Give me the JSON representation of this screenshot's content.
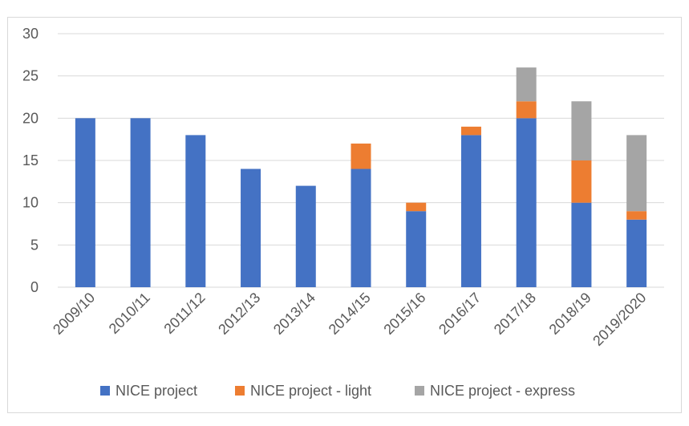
{
  "chart_data": {
    "type": "bar",
    "stacked": true,
    "categories": [
      "2009/10",
      "2010/11",
      "2011/12",
      "2012/13",
      "2013/14",
      "2014/15",
      "2015/16",
      "2016/17",
      "2017/18",
      "2018/19",
      "2019/2020"
    ],
    "series": [
      {
        "name": "NICE project",
        "color": "#4472c4",
        "values": [
          20,
          20,
          18,
          14,
          12,
          14,
          9,
          18,
          20,
          10,
          8
        ]
      },
      {
        "name": "NICE project - light",
        "color": "#ed7d31",
        "values": [
          0,
          0,
          0,
          0,
          0,
          3,
          1,
          1,
          2,
          5,
          1
        ]
      },
      {
        "name": "NICE project - express",
        "color": "#a5a5a5",
        "values": [
          0,
          0,
          0,
          0,
          0,
          0,
          0,
          0,
          4,
          7,
          9
        ]
      }
    ],
    "ylim": [
      0,
      30
    ],
    "yticks": [
      0,
      5,
      10,
      15,
      20,
      25,
      30
    ],
    "grid": true,
    "legend_position": "bottom",
    "gridline_color": "#d9d9d9",
    "axis_label_color": "#595959"
  }
}
